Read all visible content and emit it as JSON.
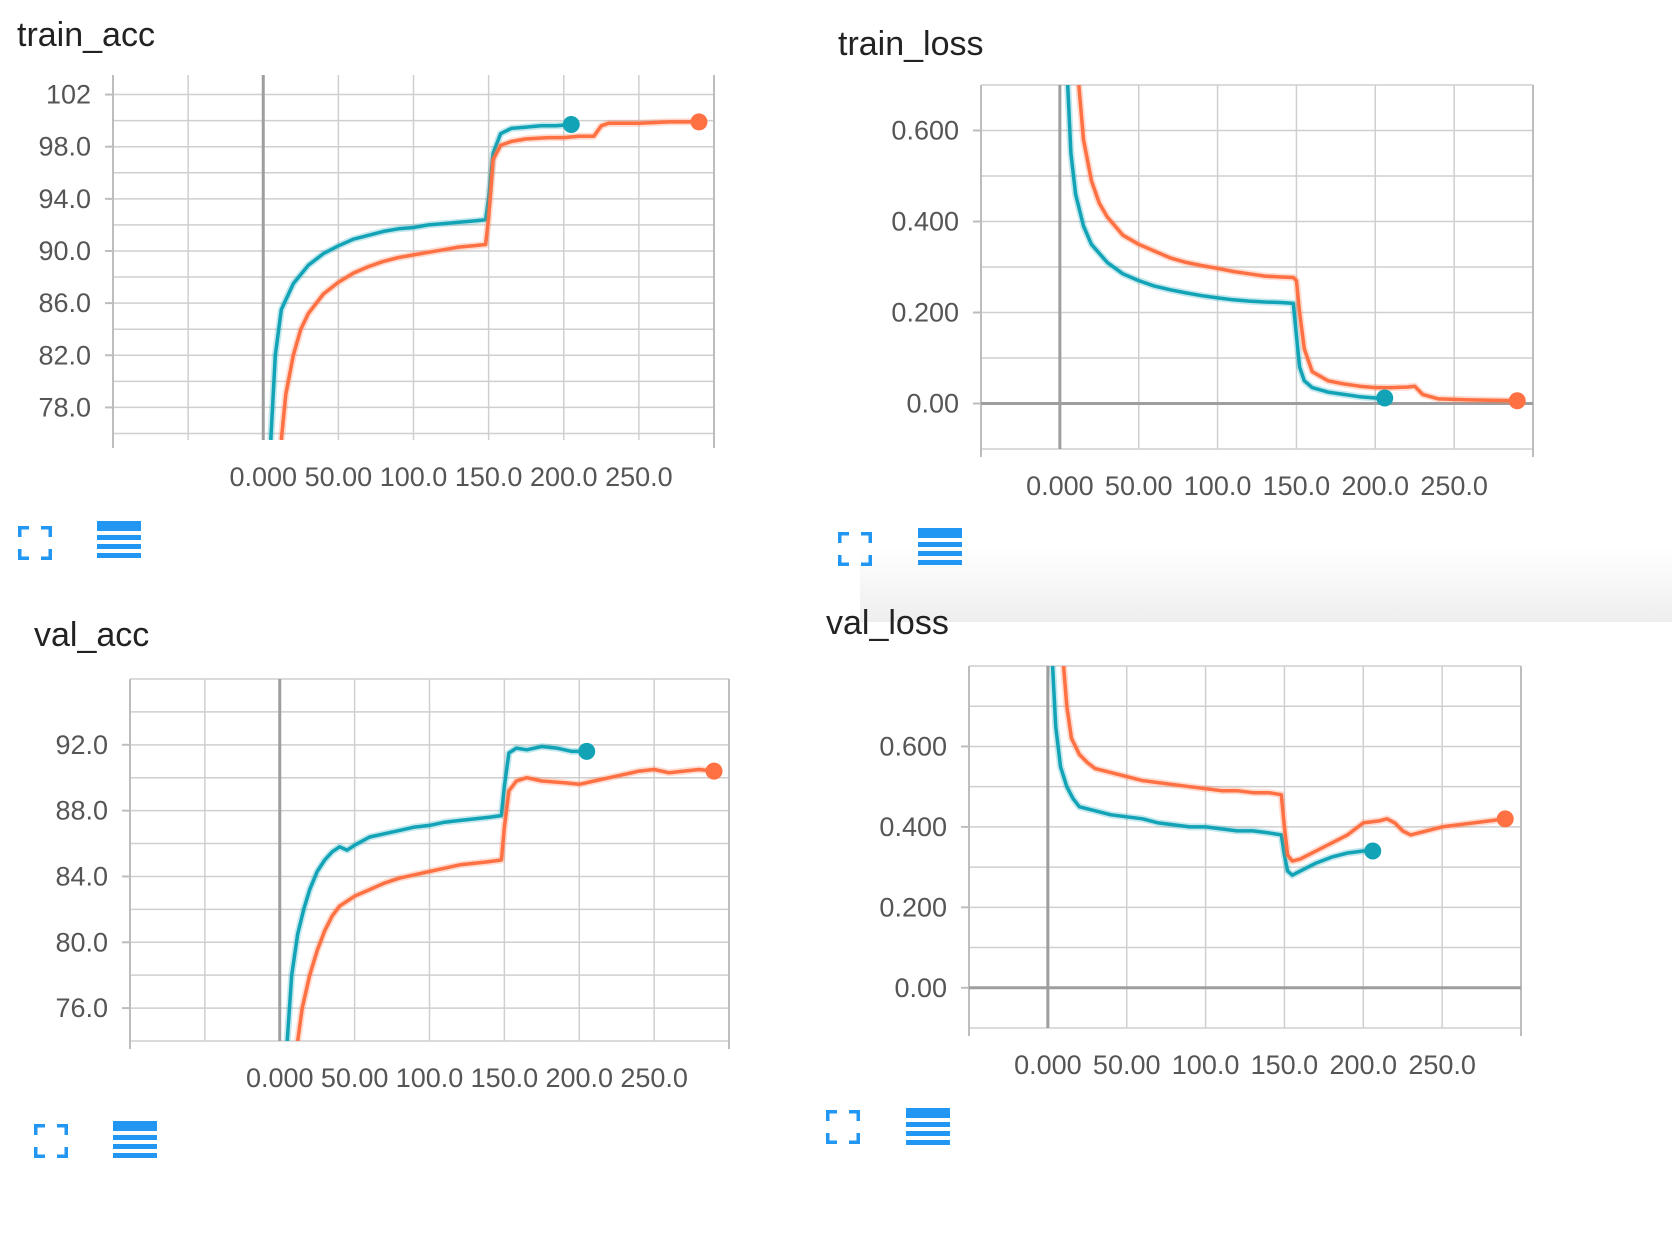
{
  "colors": {
    "series_teal": "#12a4b6",
    "series_orange": "#ff7043",
    "grid": "#cfcfcf",
    "axis_zero": "#9e9e9e",
    "tick_text": "#555555",
    "icon_blue": "#2196f3"
  },
  "icons": {
    "expand": "expand-icon",
    "data_table": "data-table-icon"
  },
  "chart_data": [
    {
      "type": "line",
      "title": "train_acc",
      "xlabel": "",
      "ylabel": "",
      "xlim": [
        -100,
        300
      ],
      "ylim": [
        75.5,
        103.5
      ],
      "x_ticks": [
        0,
        50,
        100,
        150,
        200,
        250
      ],
      "x_tick_labels": [
        "0.000",
        "50.00",
        "100.0",
        "150.0",
        "200.0",
        "250.0"
      ],
      "y_ticks": [
        78,
        82,
        86,
        90,
        94,
        98,
        102
      ],
      "y_tick_labels": [
        "78.0",
        "82.0",
        "86.0",
        "90.0",
        "94.0",
        "98.0",
        "102"
      ],
      "grid": true,
      "series": [
        {
          "color": "#12a4b6",
          "x": [
            5,
            8,
            12,
            20,
            30,
            40,
            50,
            60,
            70,
            80,
            90,
            100,
            110,
            120,
            130,
            140,
            148,
            150,
            153,
            158,
            165,
            175,
            185,
            195,
            205
          ],
          "y": [
            75.5,
            82,
            85.5,
            87.5,
            88.9,
            89.8,
            90.4,
            90.9,
            91.2,
            91.5,
            91.7,
            91.8,
            92.0,
            92.1,
            92.2,
            92.3,
            92.4,
            94.0,
            97.5,
            99.0,
            99.4,
            99.5,
            99.6,
            99.6,
            99.7
          ]
        },
        {
          "color": "#ff7043",
          "x": [
            12,
            15,
            20,
            25,
            30,
            40,
            50,
            60,
            70,
            80,
            90,
            100,
            110,
            120,
            130,
            140,
            148,
            150,
            153,
            158,
            165,
            175,
            190,
            200,
            210,
            220,
            225,
            230,
            250,
            270,
            290
          ],
          "y": [
            75.5,
            79,
            82,
            84,
            85.2,
            86.7,
            87.6,
            88.3,
            88.8,
            89.2,
            89.5,
            89.7,
            89.9,
            90.1,
            90.3,
            90.4,
            90.5,
            92.5,
            97.0,
            98.1,
            98.4,
            98.6,
            98.7,
            98.7,
            98.8,
            98.8,
            99.6,
            99.8,
            99.8,
            99.9,
            99.9
          ]
        }
      ]
    },
    {
      "type": "line",
      "title": "train_loss",
      "xlabel": "",
      "ylabel": "",
      "xlim": [
        -50,
        300
      ],
      "ylim": [
        -0.1,
        0.7
      ],
      "x_ticks": [
        0,
        50,
        100,
        150,
        200,
        250
      ],
      "x_tick_labels": [
        "0.000",
        "50.00",
        "100.0",
        "150.0",
        "200.0",
        "250.0"
      ],
      "y_ticks": [
        0,
        0.2,
        0.4,
        0.6
      ],
      "y_tick_labels": [
        "0.00",
        "0.200",
        "0.400",
        "0.600"
      ],
      "grid": true,
      "series": [
        {
          "color": "#12a4b6",
          "x": [
            5,
            7,
            10,
            15,
            20,
            30,
            40,
            50,
            60,
            70,
            80,
            90,
            100,
            110,
            120,
            130,
            140,
            148,
            150,
            152,
            155,
            160,
            170,
            180,
            190,
            200,
            206
          ],
          "y": [
            0.7,
            0.55,
            0.46,
            0.39,
            0.35,
            0.31,
            0.285,
            0.27,
            0.258,
            0.25,
            0.243,
            0.237,
            0.232,
            0.228,
            0.225,
            0.223,
            0.222,
            0.22,
            0.15,
            0.08,
            0.05,
            0.035,
            0.025,
            0.02,
            0.015,
            0.012,
            0.012
          ]
        },
        {
          "color": "#ff7043",
          "x": [
            12,
            15,
            20,
            25,
            30,
            40,
            50,
            60,
            70,
            80,
            90,
            100,
            110,
            120,
            130,
            140,
            148,
            150,
            152,
            155,
            160,
            170,
            180,
            190,
            200,
            210,
            220,
            225,
            230,
            240,
            260,
            290
          ],
          "y": [
            0.7,
            0.58,
            0.49,
            0.44,
            0.41,
            0.37,
            0.35,
            0.335,
            0.32,
            0.31,
            0.303,
            0.297,
            0.29,
            0.285,
            0.28,
            0.278,
            0.277,
            0.27,
            0.2,
            0.12,
            0.07,
            0.05,
            0.043,
            0.038,
            0.035,
            0.035,
            0.036,
            0.038,
            0.02,
            0.01,
            0.008,
            0.006
          ]
        }
      ]
    },
    {
      "type": "line",
      "title": "val_acc",
      "xlabel": "",
      "ylabel": "",
      "xlim": [
        -100,
        300
      ],
      "ylim": [
        74,
        96
      ],
      "x_ticks": [
        0,
        50,
        100,
        150,
        200,
        250
      ],
      "x_tick_labels": [
        "0.000",
        "50.00",
        "100.0",
        "150.0",
        "200.0",
        "250.0"
      ],
      "y_ticks": [
        76,
        80,
        84,
        88,
        92
      ],
      "y_tick_labels": [
        "76.0",
        "80.0",
        "84.0",
        "88.0",
        "92.0"
      ],
      "grid": true,
      "series": [
        {
          "color": "#12a4b6",
          "x": [
            5,
            8,
            12,
            16,
            20,
            25,
            30,
            35,
            40,
            45,
            50,
            60,
            70,
            80,
            90,
            100,
            110,
            120,
            130,
            140,
            148,
            150,
            153,
            158,
            165,
            175,
            185,
            195,
            205
          ],
          "y": [
            74,
            78,
            80.5,
            82,
            83.2,
            84.3,
            85.0,
            85.5,
            85.8,
            85.6,
            85.9,
            86.4,
            86.6,
            86.8,
            87.0,
            87.1,
            87.3,
            87.4,
            87.5,
            87.6,
            87.7,
            89.5,
            91.5,
            91.8,
            91.7,
            91.9,
            91.8,
            91.6,
            91.6
          ]
        },
        {
          "color": "#ff7043",
          "x": [
            12,
            15,
            20,
            25,
            30,
            35,
            40,
            50,
            60,
            70,
            80,
            90,
            100,
            110,
            120,
            130,
            140,
            148,
            150,
            153,
            158,
            165,
            175,
            190,
            200,
            210,
            220,
            230,
            240,
            250,
            260,
            270,
            280,
            290
          ],
          "y": [
            74,
            76,
            78,
            79.5,
            80.7,
            81.6,
            82.2,
            82.8,
            83.2,
            83.6,
            83.9,
            84.1,
            84.3,
            84.5,
            84.7,
            84.8,
            84.9,
            85.0,
            87.0,
            89.2,
            89.8,
            90.0,
            89.8,
            89.7,
            89.6,
            89.8,
            90.0,
            90.2,
            90.4,
            90.5,
            90.3,
            90.4,
            90.5,
            90.4
          ]
        }
      ]
    },
    {
      "type": "line",
      "title": "val_loss",
      "xlabel": "",
      "ylabel": "",
      "xlim": [
        -50,
        300
      ],
      "ylim": [
        -0.1,
        0.8
      ],
      "x_ticks": [
        0,
        50,
        100,
        150,
        200,
        250
      ],
      "x_tick_labels": [
        "0.000",
        "50.00",
        "100.0",
        "150.0",
        "200.0",
        "250.0"
      ],
      "y_ticks": [
        0,
        0.2,
        0.4,
        0.6
      ],
      "y_tick_labels": [
        "0.00",
        "0.200",
        "0.400",
        "0.600"
      ],
      "grid": true,
      "series": [
        {
          "color": "#12a4b6",
          "x": [
            3,
            5,
            8,
            12,
            16,
            20,
            30,
            40,
            50,
            60,
            70,
            80,
            90,
            100,
            110,
            120,
            130,
            140,
            148,
            150,
            152,
            155,
            160,
            170,
            180,
            190,
            200,
            206
          ],
          "y": [
            0.8,
            0.65,
            0.55,
            0.5,
            0.47,
            0.45,
            0.44,
            0.43,
            0.425,
            0.42,
            0.41,
            0.405,
            0.4,
            0.4,
            0.395,
            0.39,
            0.39,
            0.385,
            0.38,
            0.33,
            0.29,
            0.28,
            0.29,
            0.31,
            0.325,
            0.335,
            0.34,
            0.34
          ]
        },
        {
          "color": "#ff7043",
          "x": [
            10,
            12,
            15,
            20,
            25,
            30,
            40,
            50,
            60,
            70,
            80,
            90,
            100,
            110,
            120,
            130,
            140,
            148,
            150,
            152,
            155,
            160,
            170,
            180,
            190,
            200,
            210,
            215,
            220,
            225,
            230,
            240,
            250,
            260,
            270,
            280,
            290
          ],
          "y": [
            0.8,
            0.7,
            0.62,
            0.58,
            0.56,
            0.545,
            0.535,
            0.525,
            0.515,
            0.51,
            0.505,
            0.5,
            0.495,
            0.49,
            0.49,
            0.485,
            0.485,
            0.48,
            0.4,
            0.33,
            0.315,
            0.32,
            0.34,
            0.36,
            0.38,
            0.41,
            0.415,
            0.42,
            0.41,
            0.39,
            0.38,
            0.39,
            0.4,
            0.405,
            0.41,
            0.415,
            0.42
          ]
        }
      ]
    }
  ]
}
